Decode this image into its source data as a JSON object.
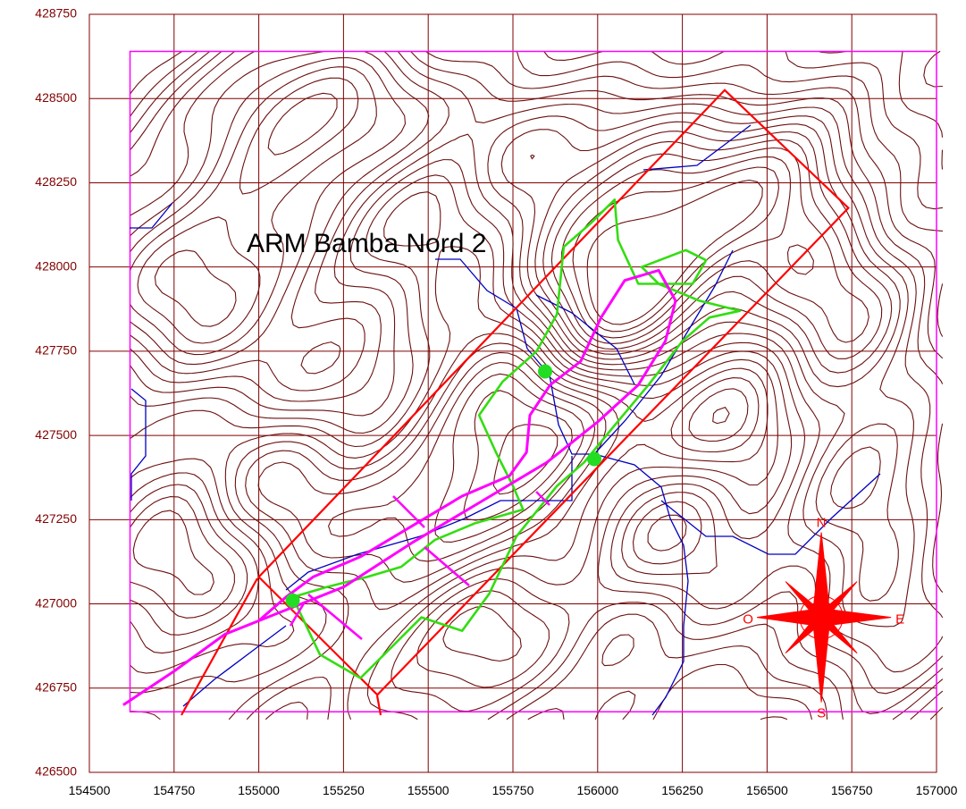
{
  "map": {
    "title": "ARM Bamba Nord 2",
    "x_ticks": [
      "154500",
      "154750",
      "155000",
      "155250",
      "155500",
      "155750",
      "156000",
      "156250",
      "156500",
      "156750",
      "157000"
    ],
    "y_ticks": [
      "428750",
      "428500",
      "428250",
      "428000",
      "427750",
      "427500",
      "427250",
      "427000",
      "426750",
      "426500"
    ],
    "compass": {
      "north": "N",
      "south": "S",
      "east": "E",
      "west": "O"
    },
    "colors": {
      "grid": "#800000",
      "tick_text": "#800000",
      "contours": "#6b1010",
      "survey_frame": "#ff00ff",
      "permit_boundary": "#ff0000",
      "streams": "#0000c0",
      "zone_outline": "#33dd11",
      "track": "#ff00ff",
      "points": "#22dd22",
      "compass": "#ff0000"
    }
  },
  "chart_data": {
    "type": "map",
    "title": "ARM Bamba Nord 2",
    "xlim": [
      154500,
      157000
    ],
    "ylim": [
      426500,
      428750
    ],
    "x_ticks": [
      154500,
      154750,
      155000,
      155250,
      155500,
      155750,
      156000,
      156250,
      156500,
      156750,
      157000
    ],
    "y_ticks": [
      426500,
      426750,
      427000,
      427250,
      427500,
      427750,
      428000,
      428250,
      428500,
      428750
    ],
    "grid": true,
    "survey_frame": [
      [
        154620,
        428640
      ],
      [
        157000,
        428640
      ],
      [
        157000,
        426680
      ],
      [
        154620,
        426680
      ]
    ],
    "permit_boundary": [
      [
        155000,
        427080
      ],
      [
        156375,
        428525
      ],
      [
        156740,
        428175
      ],
      [
        155350,
        426730
      ]
    ],
    "zone_outline": [
      [
        155100,
        427020
      ],
      [
        155180,
        426850
      ],
      [
        155300,
        426780
      ],
      [
        155400,
        426880
      ],
      [
        155480,
        426960
      ],
      [
        155600,
        426920
      ],
      [
        155680,
        427030
      ],
      [
        155760,
        427200
      ],
      [
        155880,
        427350
      ],
      [
        155960,
        427420
      ],
      [
        156050,
        427530
      ],
      [
        156150,
        427650
      ],
      [
        156250,
        427780
      ],
      [
        156330,
        427850
      ],
      [
        156420,
        427870
      ],
      [
        156300,
        427900
      ],
      [
        156180,
        427950
      ],
      [
        156130,
        428000
      ],
      [
        156260,
        428050
      ],
      [
        156320,
        428020
      ],
      [
        156280,
        427950
      ],
      [
        156120,
        427950
      ],
      [
        156060,
        428080
      ],
      [
        156050,
        428200
      ],
      [
        155980,
        428130
      ],
      [
        155900,
        428060
      ],
      [
        155880,
        427860
      ],
      [
        155820,
        427750
      ],
      [
        155720,
        427660
      ],
      [
        155650,
        427560
      ],
      [
        155700,
        427450
      ],
      [
        155750,
        427350
      ],
      [
        155780,
        427280
      ],
      [
        155640,
        427240
      ],
      [
        155520,
        427190
      ],
      [
        155420,
        427110
      ],
      [
        155320,
        427080
      ],
      [
        155200,
        427050
      ]
    ],
    "track": [
      [
        154600,
        426700
      ],
      [
        154750,
        426800
      ],
      [
        154900,
        426910
      ],
      [
        155050,
        426970
      ],
      [
        155250,
        427050
      ],
      [
        155450,
        427180
      ],
      [
        155650,
        427300
      ],
      [
        155850,
        427420
      ],
      [
        156000,
        427540
      ],
      [
        156120,
        427650
      ],
      [
        156200,
        427780
      ],
      [
        156230,
        427900
      ],
      [
        156180,
        427990
      ],
      [
        156080,
        427960
      ],
      [
        156010,
        427850
      ],
      [
        155950,
        427720
      ],
      [
        155860,
        427650
      ],
      [
        155800,
        427560
      ],
      [
        155790,
        427450
      ],
      [
        155740,
        427380
      ],
      [
        155600,
        427320
      ],
      [
        155450,
        427230
      ],
      [
        155300,
        427140
      ],
      [
        155160,
        427080
      ],
      [
        155080,
        427020
      ],
      [
        155000,
        426950
      ]
    ],
    "points": [
      [
        155100,
        427010
      ],
      [
        155845,
        427690
      ],
      [
        155990,
        427430
      ]
    ],
    "compass": {
      "x": 156660,
      "y": 426960
    }
  }
}
